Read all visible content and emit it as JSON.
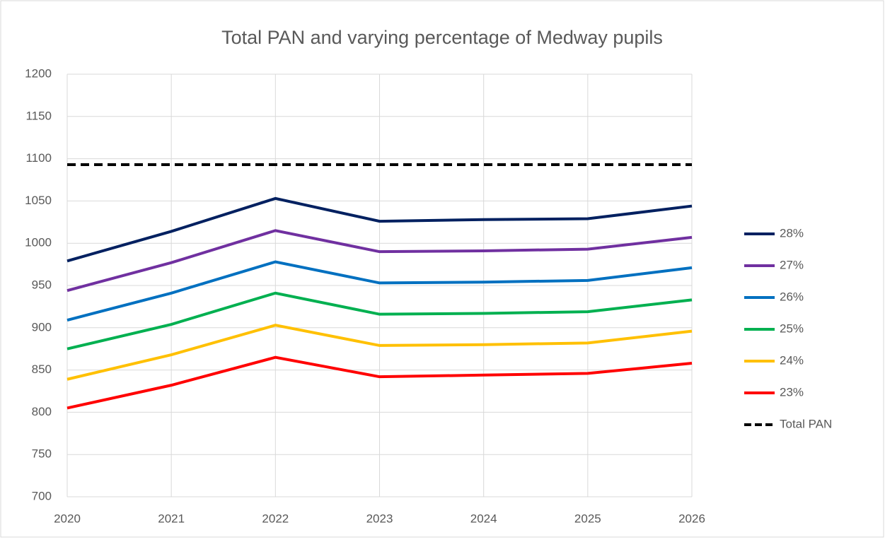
{
  "chart_data": {
    "type": "line",
    "title": "Total PAN and varying percentage of Medway pupils",
    "x": [
      2020,
      2021,
      2022,
      2023,
      2024,
      2025,
      2026
    ],
    "xlim": [
      2020,
      2026
    ],
    "xticks": [
      2020,
      2021,
      2022,
      2023,
      2024,
      2025,
      2026
    ],
    "ylim": [
      700,
      1200
    ],
    "yticks": [
      700,
      750,
      800,
      850,
      900,
      950,
      1000,
      1050,
      1100,
      1150,
      1200
    ],
    "grid": true,
    "legend": "right",
    "series": [
      {
        "name": "28%",
        "color": "#002060",
        "values": [
          979,
          1014,
          1053,
          1026,
          1028,
          1029,
          1044
        ]
      },
      {
        "name": "27%",
        "color": "#7030a0",
        "values": [
          944,
          977,
          1015,
          990,
          991,
          993,
          1007
        ]
      },
      {
        "name": "26%",
        "color": "#0070c0",
        "values": [
          909,
          941,
          978,
          953,
          954,
          956,
          971
        ]
      },
      {
        "name": "25%",
        "color": "#00b050",
        "values": [
          875,
          904,
          941,
          916,
          917,
          919,
          933
        ]
      },
      {
        "name": "24%",
        "color": "#ffc000",
        "values": [
          839,
          868,
          903,
          879,
          880,
          882,
          896
        ]
      },
      {
        "name": "23%",
        "color": "#ff0000",
        "values": [
          805,
          832,
          865,
          842,
          844,
          846,
          858
        ]
      },
      {
        "name": "Total PAN",
        "color": "#000000",
        "dashed": true,
        "values": [
          1093,
          1093,
          1093,
          1093,
          1093,
          1093,
          1093
        ]
      }
    ]
  }
}
